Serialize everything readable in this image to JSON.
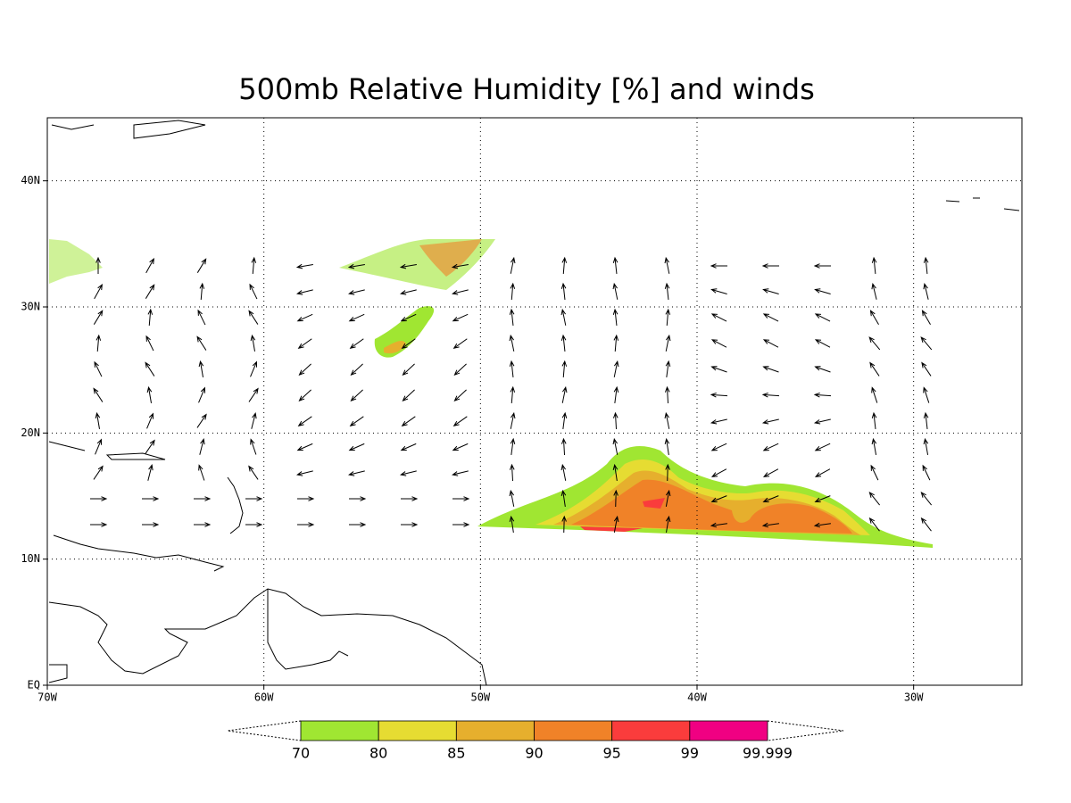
{
  "map": {
    "title": "500mb Relative Humidity [%] and winds",
    "lon_range": [
      -70,
      -25
    ],
    "lat_range": [
      0,
      45
    ],
    "lon_ticks": [
      {
        "value": -70,
        "label": "70W"
      },
      {
        "value": -60,
        "label": "60W"
      },
      {
        "value": -50,
        "label": "50W"
      },
      {
        "value": -40,
        "label": "40W"
      },
      {
        "value": -30,
        "label": "30W"
      }
    ],
    "lat_ticks": [
      {
        "value": 0,
        "label": "EQ"
      },
      {
        "value": 10,
        "label": "10N"
      },
      {
        "value": 20,
        "label": "20N"
      },
      {
        "value": 30,
        "label": "30N"
      },
      {
        "value": 40,
        "label": "40N"
      }
    ],
    "grid": true,
    "colorbar": {
      "levels": [
        70,
        80,
        85,
        90,
        95,
        99,
        99.999
      ],
      "colors": [
        "#a0e632",
        "#e6dc32",
        "#e6af2d",
        "#f08228",
        "#fa3c3c",
        "#f00082"
      ]
    }
  }
}
